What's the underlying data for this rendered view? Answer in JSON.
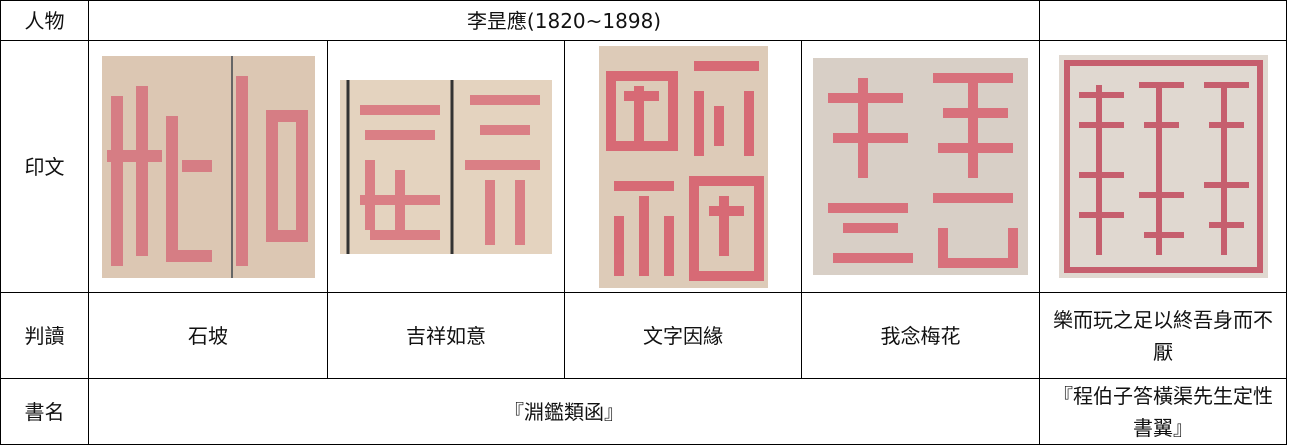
{
  "table": {
    "rows": [
      [
        "人物",
        "李昰應(1820~1898)"
      ],
      [
        "印文"
      ],
      [
        "判讀",
        "石坡",
        "吉祥如意",
        "文字因緣",
        "我念梅花",
        "樂而玩之足以終吾身而不厭"
      ],
      [
        "書名",
        "『淵鑑類函』",
        "『程伯子答橫渠先生定性書翼』"
      ]
    ]
  }
}
